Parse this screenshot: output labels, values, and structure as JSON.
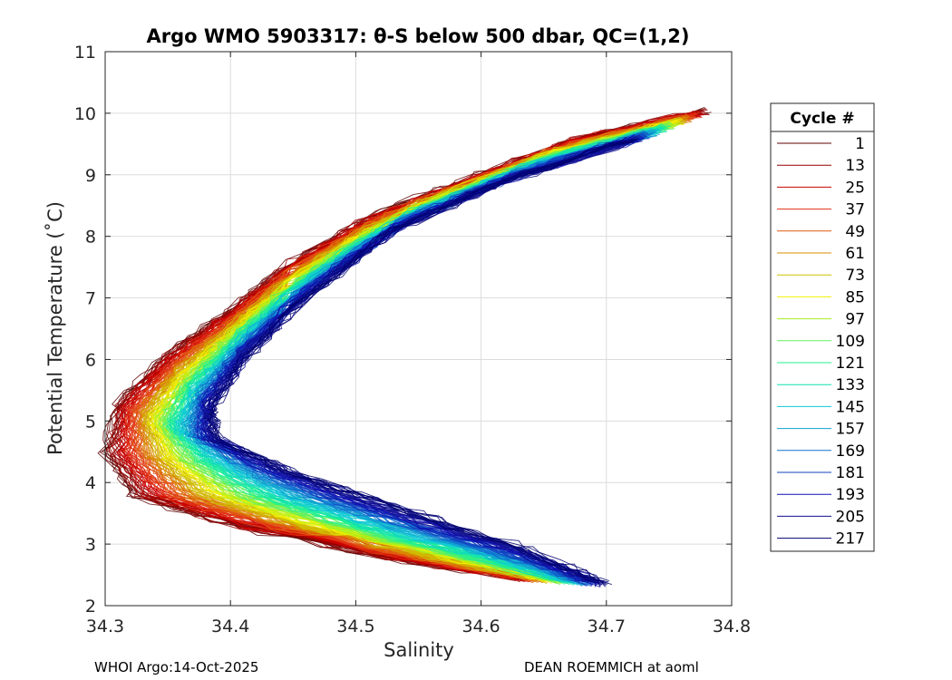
{
  "chart_data": {
    "type": "line",
    "title": "Argo WMO 5903317: θ-S below 500 dbar,  QC=(1,2)",
    "xlabel": "Salinity",
    "ylabel": "Potential Temperature (˚C)",
    "xlim": [
      34.3,
      34.8
    ],
    "ylim": [
      2,
      11
    ],
    "xticks": [
      34.3,
      34.4,
      34.5,
      34.6,
      34.7,
      34.8
    ],
    "xtick_labels": [
      "34.3",
      "34.4",
      "34.5",
      "34.6",
      "34.7",
      "34.8"
    ],
    "yticks": [
      2,
      3,
      4,
      5,
      6,
      7,
      8,
      9,
      10,
      11
    ],
    "ytick_labels": [
      "2",
      "3",
      "4",
      "5",
      "6",
      "7",
      "8",
      "9",
      "10",
      "11"
    ],
    "grid": true,
    "legend": {
      "title": "Cycle #",
      "position": "right",
      "entries": [
        "1",
        "13",
        "25",
        "37",
        "49",
        "61",
        "73",
        "85",
        "97",
        "109",
        "121",
        "133",
        "145",
        "157",
        "169",
        "181",
        "193",
        "205",
        "217"
      ],
      "colors": [
        "#600000",
        "#980000",
        "#cc0000",
        "#e03010",
        "#e05a10",
        "#d88c00",
        "#d0c000",
        "#f0f000",
        "#a8f020",
        "#60f060",
        "#20f090",
        "#10e0b0",
        "#10c8d8",
        "#10a0d0",
        "#1070d0",
        "#1040c0",
        "#1010b0",
        "#101090",
        "#000070"
      ]
    },
    "series_profile": {
      "description": "Approximate theta-S curve per cycle group (S, theta)",
      "early_cycles": [
        [
          34.78,
          10.05
        ],
        [
          34.68,
          9.6
        ],
        [
          34.6,
          9.0
        ],
        [
          34.52,
          8.4
        ],
        [
          34.45,
          7.6
        ],
        [
          34.4,
          6.8
        ],
        [
          34.35,
          6.1
        ],
        [
          34.31,
          5.3
        ],
        [
          34.3,
          4.5
        ],
        [
          34.32,
          3.8
        ],
        [
          34.4,
          3.3
        ],
        [
          34.52,
          2.8
        ],
        [
          34.63,
          2.45
        ]
      ],
      "late_cycles": [
        [
          34.72,
          9.55
        ],
        [
          34.62,
          8.9
        ],
        [
          34.53,
          8.1
        ],
        [
          34.46,
          7.0
        ],
        [
          34.41,
          6.0
        ],
        [
          34.385,
          5.2
        ],
        [
          34.39,
          4.7
        ],
        [
          34.46,
          4.1
        ],
        [
          34.55,
          3.5
        ],
        [
          34.64,
          2.9
        ],
        [
          34.7,
          2.35
        ]
      ]
    },
    "footer_left": "WHOI Argo:14-Oct-2025",
    "footer_right": "DEAN ROEMMICH at aoml"
  }
}
